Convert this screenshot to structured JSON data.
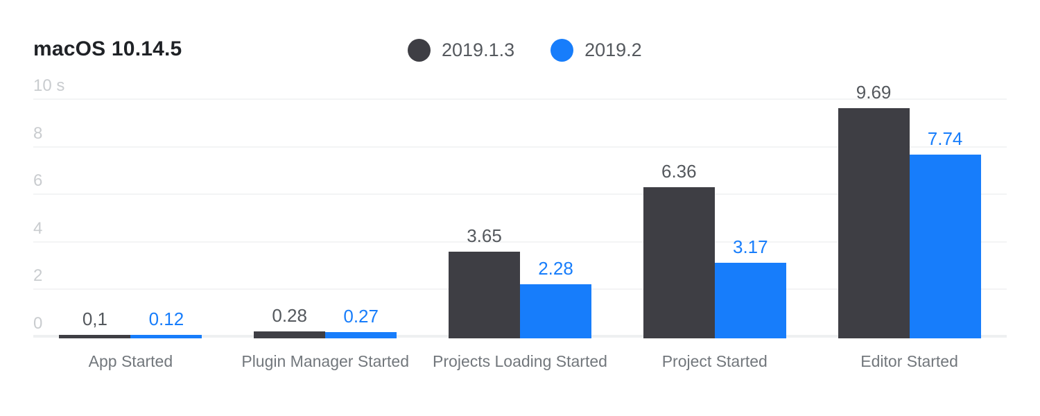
{
  "header": {
    "title": "macOS 10.14.5"
  },
  "colors": {
    "background": "#ffffff",
    "series_dark": "#3e3e44",
    "series_blue": "#177dfb",
    "dark_value_label": "#54585d",
    "blue_value_label": "#177dfb",
    "gridline": "#f3f4f5",
    "axis_line": "#eef0f1",
    "tick_label": "#c9cccf",
    "category_label": "#72777c",
    "legend_label": "#55595e",
    "title": "#1f2226"
  },
  "chart_data": {
    "type": "bar",
    "title": "macOS 10.14.5",
    "xlabel": "",
    "ylabel": "seconds",
    "unit": "s",
    "grid": true,
    "legend_position": "top-center",
    "categories": [
      "App Started",
      "Plugin Manager Started",
      "Projects Loading Started",
      "Project Started",
      "Editor Started"
    ],
    "series": [
      {
        "name": "2019.1.3",
        "color": "#3e3e44",
        "label_color": "#54585d",
        "values": [
          0.1,
          0.28,
          3.65,
          6.36,
          9.69
        ],
        "labels": [
          "0,1",
          "0.28",
          "3.65",
          "6.36",
          "9.69"
        ]
      },
      {
        "name": "2019.2",
        "color": "#177dfb",
        "label_color": "#177dfb",
        "values": [
          0.12,
          0.27,
          2.28,
          3.17,
          7.74
        ],
        "labels": [
          "0.12",
          "0.27",
          "2.28",
          "3.17",
          "7.74"
        ]
      }
    ],
    "y_axis": {
      "min": 0,
      "max": 10,
      "ticks": [
        {
          "value": 10,
          "label": "10 s"
        },
        {
          "value": 8,
          "label": "8"
        },
        {
          "value": 6,
          "label": "6"
        },
        {
          "value": 4,
          "label": "4"
        },
        {
          "value": 2,
          "label": "2"
        },
        {
          "value": 0,
          "label": "0"
        }
      ]
    }
  }
}
